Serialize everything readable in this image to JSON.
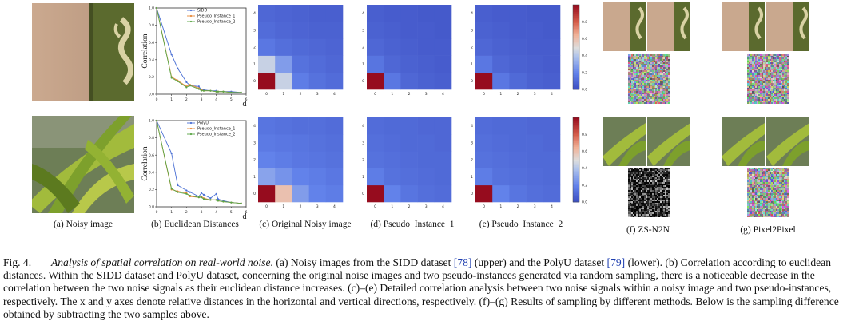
{
  "subfigures": {
    "a": "(a) Noisy image",
    "b": "(b) Euclidean Distances",
    "c": "(c) Original Noisy image",
    "d": "(d) Pseudo_Instance_1",
    "e": "(e) Pseudo_Instance_2",
    "f": "(f) ZS-N2N",
    "g": "(g) Pixel2Pixel"
  },
  "colorbar_ticks": [
    "0.8",
    "0.6",
    "0.4",
    "0.2",
    "0.0"
  ],
  "heatmap_ticks": [
    "0",
    "1",
    "2",
    "3",
    "4"
  ],
  "caption": {
    "fig": "Fig. 4.",
    "title": "Analysis of spatial correlation on real-world noise.",
    "p1": " (a) Noisy images from the SIDD dataset ",
    "ref1": "[78]",
    "p2": " (upper) and the PolyU dataset ",
    "ref2": "[79]",
    "p3": " (lower). (b) Correlation according to euclidean distances. Within the SIDD dataset and PolyU dataset, concerning the original noise images and two pseudo-instances generated via random sampling, there is a noticeable decrease in the correlation between the two noise signals as their euclidean distance increases. (c)–(e) Detailed correlation analysis between two noise signals within a noisy image and two pseudo-instances, respectively. The x and y axes denote relative distances in the horizontal and vertical directions, respectively. (f)–(g) Results of sampling by different methods. Below is the sampling difference obtained by subtracting the two samples above."
  },
  "chart_data": [
    {
      "type": "line",
      "ylabel": "Correlation",
      "xlabel": "d",
      "x": [
        0,
        1,
        1.41,
        2,
        2.24,
        2.83,
        3,
        3.16,
        3.61,
        4,
        4.12,
        4.47,
        5,
        5.66
      ],
      "xticks": [
        "0",
        "1",
        "2",
        "3",
        "4",
        "5",
        "6"
      ],
      "yticks": [
        "0.0",
        "0.2",
        "0.4",
        "0.6",
        "0.8",
        "1.0"
      ],
      "ylim": [
        0,
        1
      ],
      "xlim": [
        0,
        6
      ],
      "series": [
        {
          "name": "SIDD",
          "color": "#4a6fd4",
          "values": [
            1.0,
            0.46,
            0.3,
            0.14,
            0.1,
            0.09,
            0.05,
            0.05,
            0.04,
            0.04,
            0.03,
            0.03,
            0.03,
            0.02
          ]
        },
        {
          "name": "Pseudo_Instance_1",
          "color": "#e8893a",
          "values": [
            1.0,
            0.2,
            0.16,
            0.09,
            0.11,
            0.07,
            0.05,
            0.04,
            0.04,
            0.03,
            0.03,
            0.03,
            0.02,
            0.02
          ]
        },
        {
          "name": "Pseudo_Instance_2",
          "color": "#5aa545",
          "values": [
            1.0,
            0.19,
            0.15,
            0.08,
            0.1,
            0.06,
            0.04,
            0.04,
            0.04,
            0.03,
            0.03,
            0.03,
            0.02,
            0.02
          ]
        }
      ]
    },
    {
      "type": "line",
      "ylabel": "Correlation",
      "xlabel": "d",
      "x": [
        0,
        1,
        1.41,
        2,
        2.24,
        2.83,
        3,
        3.16,
        3.61,
        4,
        4.12,
        4.47,
        5,
        5.66
      ],
      "xticks": [
        "0",
        "1",
        "2",
        "3",
        "4",
        "5",
        "6"
      ],
      "yticks": [
        "0.0",
        "0.2",
        "0.4",
        "0.6",
        "0.8",
        "1.0"
      ],
      "ylim": [
        0,
        1
      ],
      "xlim": [
        0,
        6
      ],
      "series": [
        {
          "name": "PolyU",
          "color": "#4a6fd4",
          "values": [
            1.0,
            0.62,
            0.25,
            0.19,
            0.17,
            0.12,
            0.16,
            0.14,
            0.1,
            0.15,
            0.09,
            0.07,
            0.05,
            0.04
          ]
        },
        {
          "name": "Pseudo_Instance_1",
          "color": "#e8893a",
          "values": [
            1.0,
            0.2,
            0.18,
            0.16,
            0.12,
            0.11,
            0.12,
            0.1,
            0.08,
            0.08,
            0.07,
            0.06,
            0.05,
            0.04
          ]
        },
        {
          "name": "Pseudo_Instance_2",
          "color": "#5aa545",
          "values": [
            1.0,
            0.21,
            0.17,
            0.15,
            0.13,
            0.11,
            0.11,
            0.09,
            0.08,
            0.08,
            0.07,
            0.06,
            0.05,
            0.04
          ]
        }
      ]
    },
    {
      "type": "heatmap",
      "xticks": [
        "0",
        "1",
        "2",
        "3",
        "4"
      ],
      "yticks": [
        "0",
        "1",
        "2",
        "3",
        "4"
      ],
      "rows_bottom_to_top": [
        [
          1.0,
          0.45,
          0.18,
          0.14,
          0.12
        ],
        [
          0.45,
          0.28,
          0.14,
          0.12,
          0.1
        ],
        [
          0.16,
          0.13,
          0.11,
          0.1,
          0.09
        ],
        [
          0.12,
          0.1,
          0.09,
          0.08,
          0.08
        ],
        [
          0.1,
          0.09,
          0.08,
          0.07,
          0.07
        ]
      ]
    },
    {
      "type": "heatmap",
      "xticks": [
        "0",
        "1",
        "2",
        "3",
        "4"
      ],
      "yticks": [
        "0",
        "1",
        "2",
        "3",
        "4"
      ],
      "rows_bottom_to_top": [
        [
          1.0,
          0.16,
          0.1,
          0.08,
          0.07
        ],
        [
          0.15,
          0.1,
          0.08,
          0.07,
          0.06
        ],
        [
          0.1,
          0.08,
          0.07,
          0.06,
          0.06
        ],
        [
          0.08,
          0.07,
          0.06,
          0.06,
          0.05
        ],
        [
          0.07,
          0.06,
          0.06,
          0.05,
          0.05
        ]
      ]
    },
    {
      "type": "heatmap",
      "xticks": [
        "0",
        "1",
        "2",
        "3",
        "4"
      ],
      "yticks": [
        "0",
        "1",
        "2",
        "3",
        "4"
      ],
      "rows_bottom_to_top": [
        [
          1.0,
          0.16,
          0.11,
          0.08,
          0.07
        ],
        [
          0.16,
          0.1,
          0.08,
          0.07,
          0.06
        ],
        [
          0.1,
          0.08,
          0.07,
          0.06,
          0.06
        ],
        [
          0.08,
          0.07,
          0.06,
          0.06,
          0.05
        ],
        [
          0.07,
          0.06,
          0.06,
          0.05,
          0.05
        ]
      ]
    },
    {
      "type": "heatmap",
      "xticks": [
        "0",
        "1",
        "2",
        "3",
        "4"
      ],
      "yticks": [
        "0",
        "1",
        "2",
        "3",
        "4"
      ],
      "rows_bottom_to_top": [
        [
          1.0,
          0.6,
          0.28,
          0.2,
          0.18
        ],
        [
          0.3,
          0.25,
          0.2,
          0.18,
          0.16
        ],
        [
          0.2,
          0.18,
          0.16,
          0.15,
          0.14
        ],
        [
          0.17,
          0.16,
          0.15,
          0.14,
          0.13
        ],
        [
          0.15,
          0.14,
          0.13,
          0.13,
          0.12
        ]
      ]
    },
    {
      "type": "heatmap",
      "xticks": [
        "0",
        "1",
        "2",
        "3",
        "4"
      ],
      "yticks": [
        "0",
        "1",
        "2",
        "3",
        "4"
      ],
      "rows_bottom_to_top": [
        [
          1.0,
          0.2,
          0.15,
          0.13,
          0.12
        ],
        [
          0.18,
          0.14,
          0.13,
          0.12,
          0.11
        ],
        [
          0.14,
          0.13,
          0.12,
          0.11,
          0.11
        ],
        [
          0.13,
          0.12,
          0.11,
          0.11,
          0.1
        ],
        [
          0.12,
          0.11,
          0.11,
          0.1,
          0.1
        ]
      ]
    },
    {
      "type": "heatmap",
      "xticks": [
        "0",
        "1",
        "2",
        "3",
        "4"
      ],
      "yticks": [
        "0",
        "1",
        "2",
        "3",
        "4"
      ],
      "rows_bottom_to_top": [
        [
          1.0,
          0.2,
          0.15,
          0.13,
          0.12
        ],
        [
          0.18,
          0.14,
          0.13,
          0.12,
          0.11
        ],
        [
          0.14,
          0.13,
          0.12,
          0.11,
          0.11
        ],
        [
          0.13,
          0.12,
          0.11,
          0.11,
          0.1
        ],
        [
          0.12,
          0.11,
          0.11,
          0.1,
          0.1
        ]
      ]
    }
  ]
}
